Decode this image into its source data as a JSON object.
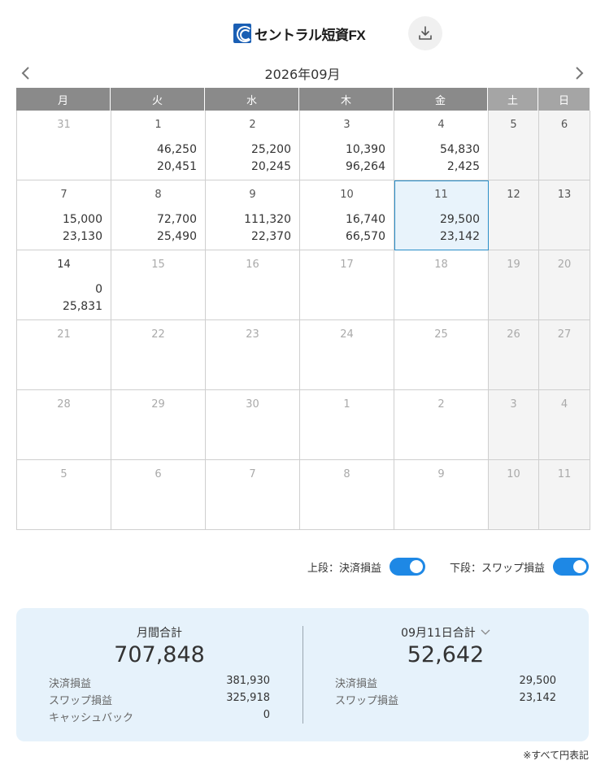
{
  "header": {
    "logo_text": "セントラル短資FX",
    "download_icon": "download-icon"
  },
  "nav": {
    "month_title": "2026年09月",
    "prev_icon": "chevron-left-icon",
    "next_icon": "chevron-right-icon"
  },
  "weekdays": [
    "月",
    "火",
    "水",
    "木",
    "金",
    "土",
    "日"
  ],
  "weeks": [
    [
      {
        "day": "31",
        "top": "",
        "bottom": "",
        "state": "other"
      },
      {
        "day": "1",
        "top": "46,250",
        "bottom": "20,451",
        "state": "cur"
      },
      {
        "day": "2",
        "top": "25,200",
        "bottom": "20,245",
        "state": "cur"
      },
      {
        "day": "3",
        "top": "10,390",
        "bottom": "96,264",
        "state": "cur"
      },
      {
        "day": "4",
        "top": "54,830",
        "bottom": "2,425",
        "state": "cur"
      },
      {
        "day": "5",
        "top": "",
        "bottom": "",
        "state": "cur"
      },
      {
        "day": "6",
        "top": "",
        "bottom": "",
        "state": "cur"
      }
    ],
    [
      {
        "day": "7",
        "top": "15,000",
        "bottom": "23,130",
        "state": "cur"
      },
      {
        "day": "8",
        "top": "72,700",
        "bottom": "25,490",
        "state": "cur"
      },
      {
        "day": "9",
        "top": "111,320",
        "bottom": "22,370",
        "state": "cur"
      },
      {
        "day": "10",
        "top": "16,740",
        "bottom": "66,570",
        "state": "cur"
      },
      {
        "day": "11",
        "top": "29,500",
        "bottom": "23,142",
        "state": "selected"
      },
      {
        "day": "12",
        "top": "",
        "bottom": "",
        "state": "cur"
      },
      {
        "day": "13",
        "top": "",
        "bottom": "",
        "state": "cur"
      }
    ],
    [
      {
        "day": "14",
        "top": "0",
        "bottom": "25,831",
        "state": "today"
      },
      {
        "day": "15",
        "top": "",
        "bottom": "",
        "state": "future"
      },
      {
        "day": "16",
        "top": "",
        "bottom": "",
        "state": "future"
      },
      {
        "day": "17",
        "top": "",
        "bottom": "",
        "state": "future"
      },
      {
        "day": "18",
        "top": "",
        "bottom": "",
        "state": "future"
      },
      {
        "day": "19",
        "top": "",
        "bottom": "",
        "state": "future"
      },
      {
        "day": "20",
        "top": "",
        "bottom": "",
        "state": "future"
      }
    ],
    [
      {
        "day": "21",
        "top": "",
        "bottom": "",
        "state": "future"
      },
      {
        "day": "22",
        "top": "",
        "bottom": "",
        "state": "future"
      },
      {
        "day": "23",
        "top": "",
        "bottom": "",
        "state": "future"
      },
      {
        "day": "24",
        "top": "",
        "bottom": "",
        "state": "future"
      },
      {
        "day": "25",
        "top": "",
        "bottom": "",
        "state": "future"
      },
      {
        "day": "26",
        "top": "",
        "bottom": "",
        "state": "future"
      },
      {
        "day": "27",
        "top": "",
        "bottom": "",
        "state": "future"
      }
    ],
    [
      {
        "day": "28",
        "top": "",
        "bottom": "",
        "state": "future"
      },
      {
        "day": "29",
        "top": "",
        "bottom": "",
        "state": "future"
      },
      {
        "day": "30",
        "top": "",
        "bottom": "",
        "state": "future"
      },
      {
        "day": "1",
        "top": "",
        "bottom": "",
        "state": "other"
      },
      {
        "day": "2",
        "top": "",
        "bottom": "",
        "state": "other"
      },
      {
        "day": "3",
        "top": "",
        "bottom": "",
        "state": "other"
      },
      {
        "day": "4",
        "top": "",
        "bottom": "",
        "state": "other"
      }
    ],
    [
      {
        "day": "5",
        "top": "",
        "bottom": "",
        "state": "other"
      },
      {
        "day": "6",
        "top": "",
        "bottom": "",
        "state": "other"
      },
      {
        "day": "7",
        "top": "",
        "bottom": "",
        "state": "other"
      },
      {
        "day": "8",
        "top": "",
        "bottom": "",
        "state": "other"
      },
      {
        "day": "9",
        "top": "",
        "bottom": "",
        "state": "other"
      },
      {
        "day": "10",
        "top": "",
        "bottom": "",
        "state": "other"
      },
      {
        "day": "11",
        "top": "",
        "bottom": "",
        "state": "other"
      }
    ]
  ],
  "toggles": {
    "upper_label": "上段：決済損益",
    "upper_on": true,
    "lower_label": "下段：スワップ損益",
    "lower_on": true
  },
  "summary": {
    "monthly": {
      "title": "月間合計",
      "total": "707,848",
      "rows": [
        {
          "label": "決済損益",
          "value": "381,930"
        },
        {
          "label": "スワップ損益",
          "value": "325,918"
        },
        {
          "label": "キャッシュバック",
          "value": "0"
        }
      ]
    },
    "daily": {
      "title": "09月11日合計",
      "total": "52,642",
      "rows": [
        {
          "label": "決済損益",
          "value": "29,500"
        },
        {
          "label": "スワップ損益",
          "value": "23,142"
        }
      ]
    }
  },
  "footnote": "※すべて円表記",
  "colors": {
    "accent": "#1e88e5",
    "selected_border": "#2a8ec8",
    "selected_bg": "#e8f3fb",
    "header_bg": "#8a8a8a",
    "summary_bg": "#e6f2fb",
    "weekend_bg": "#f4f4f4"
  }
}
